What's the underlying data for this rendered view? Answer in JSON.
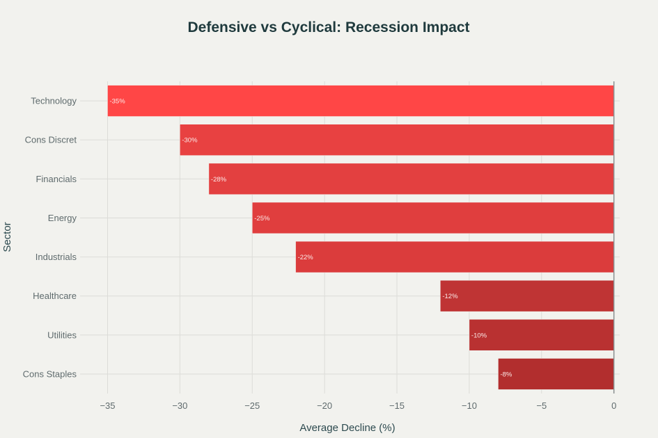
{
  "chart_data": {
    "type": "bar",
    "orientation": "horizontal",
    "title": "Defensive vs Cyclical: Recession Impact",
    "xlabel": "Average Decline (%)",
    "ylabel": "Sector",
    "categories": [
      "Technology",
      "Cons Discret",
      "Financials",
      "Energy",
      "Industrials",
      "Healthcare",
      "Utilities",
      "Cons Staples"
    ],
    "values": [
      -35,
      -30,
      -28,
      -25,
      -22,
      -12,
      -10,
      -8
    ],
    "data_labels": [
      "-35%",
      "-30%",
      "-28%",
      "-25%",
      "-22%",
      "-12%",
      "-10%",
      "-8%"
    ],
    "colors": [
      "#ff4646",
      "#e84141",
      "#e34040",
      "#e03e3e",
      "#db3c3c",
      "#bf3434",
      "#b93131",
      "#b22e2e"
    ],
    "xticks": [
      -35,
      -30,
      -25,
      -20,
      -15,
      -10,
      -5,
      0
    ],
    "xtick_labels": [
      "−35",
      "−30",
      "−25",
      "−20",
      "−15",
      "−10",
      "−5",
      "0"
    ],
    "xlim": [
      -36.9,
      0.4
    ],
    "grid": true,
    "legend": "none",
    "background": "#f2f2ee"
  }
}
